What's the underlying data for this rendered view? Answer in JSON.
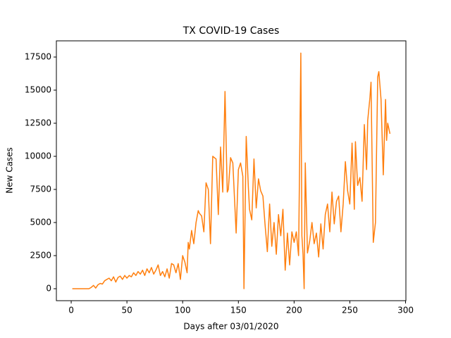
{
  "chart_data": {
    "type": "line",
    "title": "TX COVID-19 Cases",
    "x_label": "Days after 03/01/2020",
    "y_label": "New Cases",
    "x": [
      1,
      4,
      7,
      10,
      13,
      16,
      18,
      20,
      22,
      24,
      26,
      28,
      30,
      32,
      34,
      36,
      38,
      40,
      42,
      44,
      46,
      48,
      50,
      52,
      54,
      56,
      58,
      60,
      62,
      64,
      66,
      68,
      70,
      72,
      74,
      76,
      78,
      80,
      82,
      84,
      86,
      88,
      90,
      92,
      94,
      96,
      98,
      100,
      102,
      104,
      105,
      106,
      108,
      110,
      112,
      114,
      115,
      117,
      119,
      121,
      123,
      125,
      127,
      130,
      132,
      134,
      136,
      138,
      140,
      141,
      143,
      145,
      147,
      148,
      150,
      152,
      154,
      155,
      157,
      159,
      160,
      162,
      164,
      166,
      168,
      170,
      172,
      174,
      176,
      178,
      180,
      182,
      184,
      186,
      188,
      190,
      192,
      194,
      196,
      198,
      200,
      202,
      204,
      206,
      207,
      208,
      209,
      210,
      212,
      214,
      216,
      218,
      220,
      222,
      224,
      226,
      228,
      230,
      232,
      234,
      236,
      238,
      240,
      242,
      244,
      246,
      248,
      250,
      252,
      254,
      255,
      257,
      259,
      261,
      263,
      265,
      266,
      268,
      269,
      271,
      273,
      275,
      276,
      278,
      280,
      282,
      283,
      284,
      286
    ],
    "series": [
      {
        "name": "New Cases",
        "color": "#ff7f0e",
        "values": [
          0,
          0,
          0,
          0,
          0,
          0,
          100,
          250,
          50,
          300,
          400,
          350,
          600,
          700,
          800,
          600,
          900,
          500,
          850,
          950,
          700,
          1000,
          800,
          1000,
          900,
          1200,
          1000,
          1300,
          1100,
          1400,
          1000,
          1500,
          1200,
          1600,
          1100,
          1400,
          1800,
          1000,
          1300,
          900,
          1500,
          800,
          1900,
          1800,
          1200,
          1900,
          700,
          2500,
          2000,
          1200,
          3500,
          3000,
          4400,
          3400,
          5000,
          5900,
          5700,
          5500,
          4300,
          8000,
          7500,
          3400,
          10000,
          9800,
          5600,
          10700,
          7300,
          14900,
          7300,
          7500,
          9900,
          9500,
          6000,
          4200,
          9000,
          9500,
          8500,
          0,
          11500,
          7600,
          6000,
          5200,
          9800,
          6100,
          8300,
          7400,
          7000,
          4800,
          2800,
          6400,
          3200,
          5000,
          2600,
          5600,
          4000,
          6000,
          1400,
          4200,
          1800,
          4300,
          3500,
          4300,
          2500,
          17800,
          4000,
          2600,
          0,
          9500,
          2700,
          3600,
          5000,
          3400,
          4200,
          2400,
          4900,
          3000,
          5600,
          6400,
          4300,
          7300,
          4900,
          6600,
          7000,
          4300,
          6400,
          9600,
          7400,
          6400,
          11000,
          6000,
          11100,
          7800,
          8400,
          6600,
          12400,
          9000,
          12700,
          14400,
          15600,
          3500,
          5000,
          16000,
          16400,
          14300,
          8600,
          14300,
          11200,
          12500,
          11700
        ]
      }
    ],
    "xlim": [
      -13.3,
      300.3
    ],
    "ylim": [
      -904,
      18723
    ],
    "xticks": [
      0,
      50,
      100,
      150,
      200,
      250,
      300
    ],
    "yticks": [
      0,
      2500,
      5000,
      7500,
      10000,
      12500,
      15000,
      17500
    ]
  }
}
